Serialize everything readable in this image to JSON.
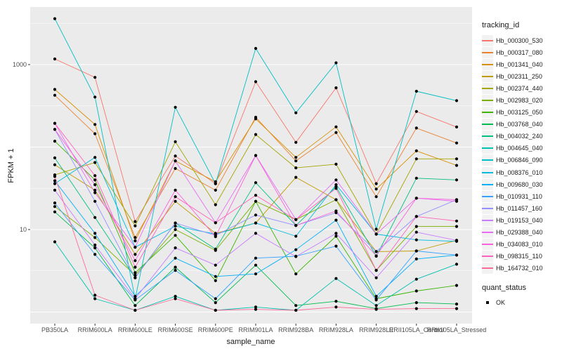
{
  "style": {
    "panel_bg": "#EBEBEB",
    "grid_color": "#FFFFFF",
    "point_color": "#000000",
    "tick_text_color": "#4D4D4D",
    "axis_title_color": "#1A1A1A",
    "legend_key_bg": "#F2F2F2"
  },
  "chart_data": {
    "type": "line",
    "title": "",
    "xlabel": "sample_name",
    "ylabel": "FPKM + 1",
    "y_scale": "log10",
    "ylim": [
      0.7,
      5000
    ],
    "grid": "on",
    "legend_position": "right",
    "y_ticks": [
      {
        "label": "1000",
        "value": 1000
      },
      {
        "label": "10",
        "value": 10
      }
    ],
    "grid_major": [
      1,
      10,
      100,
      1000
    ],
    "grid_minor": [
      3.162,
      31.62,
      316.2,
      3162
    ],
    "categories": [
      "PB350LA",
      "RRIM600LA",
      "RRIM600LE",
      "RRIM600SE",
      "RRIM600PE",
      "RRIM901LA",
      "RRIM928BA",
      "RRIM928LA",
      "RRIM928LE",
      "RRII105LA_Control",
      "RRII105LA_Stressed"
    ],
    "legend": {
      "title": "tracking_id"
    },
    "legend2": {
      "title": "quant_status",
      "items": [
        {
          "label": "OK",
          "marker": "square",
          "color": "#000000"
        }
      ]
    },
    "series": [
      {
        "name": "Hb_000300_530",
        "color": "#F8766D",
        "values": [
          1170,
          700,
          12.5,
          78,
          36,
          620,
          114,
          523,
          36,
          270,
          175
        ]
      },
      {
        "name": "Hb_000317_080",
        "color": "#EA8331",
        "values": [
          425,
          145,
          8.0,
          55,
          30,
          230,
          68,
          150,
          25,
          170,
          112
        ]
      },
      {
        "name": "Hb_001341_040",
        "color": "#D89000",
        "values": [
          500,
          188,
          7.3,
          68,
          38,
          220,
          75,
          176,
          31,
          90,
          60
        ]
      },
      {
        "name": "Hb_002311_250",
        "color": "#C09B00",
        "values": [
          61,
          30,
          5.0,
          22,
          9.0,
          12,
          43,
          23,
          5.4,
          5.5,
          7.4
        ]
      },
      {
        "name": "Hb_002374_440",
        "color": "#A3A500",
        "values": [
          46,
          65,
          11.1,
          116,
          20,
          142,
          56,
          62,
          8.8,
          72,
          72
        ]
      },
      {
        "name": "Hb_002983_020",
        "color": "#7CAE00",
        "values": [
          19,
          8.0,
          2.8,
          10,
          5.6,
          22,
          13.2,
          23,
          3.2,
          10.9,
          10.9
        ]
      },
      {
        "name": "Hb_003125_050",
        "color": "#39B600",
        "values": [
          118,
          40,
          3.0,
          8.5,
          2.4,
          22,
          2.9,
          8.3,
          1.45,
          1.8,
          2.1
        ]
      },
      {
        "name": "Hb_003768_040",
        "color": "#00BB4E",
        "values": [
          16.4,
          6.0,
          1.2,
          3.5,
          1.3,
          3.7,
          1.2,
          1.35,
          1.1,
          1.3,
          1.25
        ]
      },
      {
        "name": "Hb_004032_240",
        "color": "#00C081",
        "values": [
          74,
          14,
          2.6,
          12,
          5.8,
          37,
          11.2,
          33,
          4.75,
          42,
          40
        ]
      },
      {
        "name": "Hb_004645_040",
        "color": "#00C0AF",
        "values": [
          7.1,
          1.45,
          1.05,
          1.55,
          1.05,
          1.15,
          1.05,
          2.55,
          1.2,
          2.5,
          3.8
        ]
      },
      {
        "name": "Hb_006846_090",
        "color": "#00BFC4",
        "values": [
          3600,
          404,
          1.45,
          304,
          36,
          1570,
          260,
          1050,
          10.1,
          475,
          365
        ]
      },
      {
        "name": "Hb_008376_010",
        "color": "#00BAE0",
        "values": [
          36,
          75,
          6.1,
          11,
          8.8,
          12,
          8.3,
          35,
          8.8,
          7.5,
          7.2
        ]
      },
      {
        "name": "Hb_009680_030",
        "color": "#00B0F6",
        "values": [
          39,
          9.0,
          1.55,
          4.5,
          2.7,
          2.9,
          5.7,
          13,
          1.55,
          4.4,
          4.9
        ]
      },
      {
        "name": "Hb_010931_110",
        "color": "#35A2FF",
        "values": [
          21,
          5.0,
          1.4,
          3.2,
          1.45,
          4.5,
          4.75,
          6.3,
          1.4,
          5.5,
          4.9
        ]
      },
      {
        "name": "Hb_011457_160",
        "color": "#9590FF",
        "values": [
          164,
          22,
          2.6,
          12,
          8.5,
          15,
          11.2,
          16,
          5.4,
          14.4,
          23
        ]
      },
      {
        "name": "Hb_019153_040",
        "color": "#C77CFF",
        "values": [
          30,
          6.5,
          1.45,
          6.0,
          3.7,
          9.0,
          4.7,
          9.0,
          2.6,
          9.3,
          7.4
        ]
      },
      {
        "name": "Hb_029388_040",
        "color": "#E76BF3",
        "values": [
          194,
          28,
          6.1,
          68,
          12.1,
          79,
          13.2,
          40,
          8.8,
          24,
          22
        ]
      },
      {
        "name": "Hb_034083_010",
        "color": "#FA62DB",
        "values": [
          164,
          35,
          4.2,
          30,
          8.2,
          79,
          11.2,
          16.8,
          4.8,
          24,
          23
        ]
      },
      {
        "name": "Hb_098315_110",
        "color": "#FF62BC",
        "values": [
          194,
          45,
          3.5,
          25,
          12.1,
          26,
          13.2,
          31.5,
          3.2,
          14.4,
          12.7
        ]
      },
      {
        "name": "Hb_164732_010",
        "color": "#FF6A98",
        "values": [
          44,
          1.6,
          1.05,
          1.45,
          1.05,
          1.08,
          1.05,
          1.15,
          1.08,
          1.1,
          1.1
        ]
      }
    ]
  }
}
